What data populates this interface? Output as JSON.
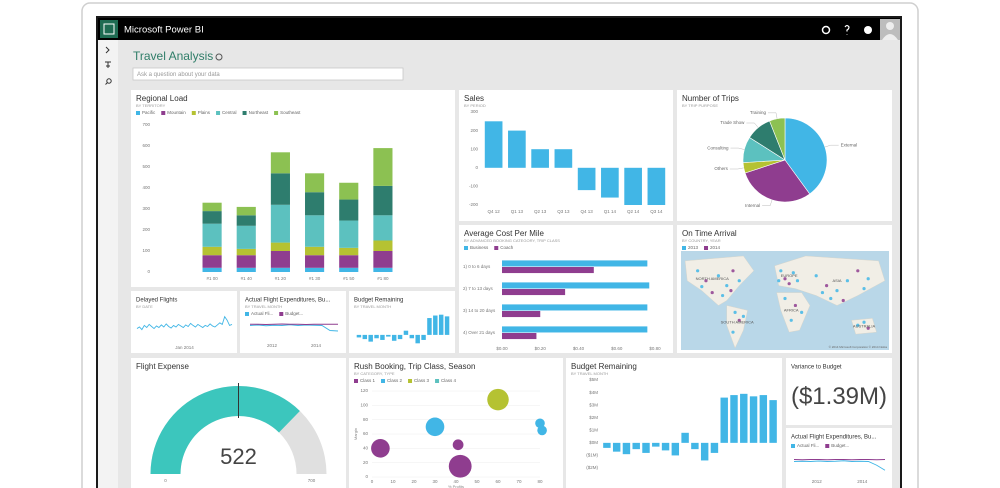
{
  "app": {
    "brand": "Microsoft Power BI"
  },
  "header": {
    "title": "Travel Analysis",
    "qa_placeholder": "Ask a question about your data"
  },
  "chart_data": [
    {
      "type": "stacked_bar",
      "title": "Regional Load",
      "subtitle": "BY TERRITORY",
      "categories": [
        "#1 00",
        "#1 40",
        "#1 20",
        "#1 30",
        "#1 50",
        "#1 80"
      ],
      "series": [
        {
          "name": "Pacific",
          "color": "#41b6e6",
          "values": [
            20,
            20,
            20,
            20,
            20,
            20
          ]
        },
        {
          "name": "Mountain",
          "color": "#8f3d8f",
          "values": [
            60,
            60,
            80,
            60,
            60,
            80
          ]
        },
        {
          "name": "Plains",
          "color": "#b5c232",
          "values": [
            40,
            30,
            40,
            40,
            35,
            50
          ]
        },
        {
          "name": "Central",
          "color": "#5cc1bf",
          "values": [
            110,
            110,
            180,
            150,
            130,
            120
          ]
        },
        {
          "name": "Northeast",
          "color": "#2e7d6e",
          "values": [
            60,
            50,
            150,
            110,
            100,
            140
          ]
        },
        {
          "name": "Southeast",
          "color": "#8cc152",
          "values": [
            40,
            40,
            100,
            90,
            80,
            180
          ]
        }
      ],
      "ylim": [
        0,
        700
      ],
      "yticks": [
        0,
        100,
        200,
        300,
        400,
        500,
        600,
        700
      ]
    },
    {
      "type": "bar",
      "title": "Sales",
      "subtitle": "BY PERIOD",
      "categories": [
        "Q4 12",
        "Q1 13",
        "Q2 13",
        "Q3 13",
        "Q4 13",
        "Q1 14",
        "Q2 14",
        "Q3 14"
      ],
      "values": [
        250,
        200,
        100,
        100,
        -120,
        -160,
        -200,
        -200
      ],
      "color": "#41b6e6",
      "ylim": [
        -200,
        300
      ],
      "yticks": [
        -200,
        -100,
        0,
        100,
        200,
        300
      ]
    },
    {
      "type": "pie",
      "title": "Number of Trips",
      "subtitle": "BY TRIP PURPOSE",
      "categories": [
        "External",
        "Internal",
        "Others",
        "Consulting",
        "Trade Show",
        "Training"
      ],
      "values": [
        40,
        30,
        4,
        10,
        10,
        6
      ],
      "colors": [
        "#41b6e6",
        "#8f3d8f",
        "#b5c232",
        "#5cc1bf",
        "#2e7d6e",
        "#8cc152"
      ]
    },
    {
      "type": "hbar",
      "title": "Average Cost Per Mile",
      "subtitle": "BY ADVANCED BOOKING CATEGORY, TRIP CLASS",
      "categories": [
        "1) 0 to 6 days",
        "2) 7 to 13 days",
        "3) 14 to 20 days",
        "4) Over 21 days"
      ],
      "series": [
        {
          "name": "Business",
          "color": "#41b6e6",
          "values": [
            0.76,
            0.77,
            0.76,
            0.76
          ]
        },
        {
          "name": "Coach",
          "color": "#8f3d8f",
          "values": [
            0.48,
            0.33,
            0.2,
            0.18
          ]
        }
      ],
      "xlim": [
        0,
        0.8
      ],
      "xticks": [
        {
          "value": 0,
          "label": "$0.00"
        },
        {
          "value": 0.2,
          "label": "$0.20"
        },
        {
          "value": 0.4,
          "label": "$0.40"
        },
        {
          "value": 0.6,
          "label": "$0.60"
        },
        {
          "value": 0.8,
          "label": "$0.80"
        }
      ]
    },
    {
      "type": "map",
      "title": "On Time Arrival",
      "subtitle": "BY COUNTRY, YEAR",
      "series": [
        {
          "name": "2013",
          "color": "#41b6e6"
        },
        {
          "name": "2014",
          "color": "#8f3d8f"
        }
      ],
      "labels": [
        "NORTH AMERICA",
        "SOUTH AMERICA",
        "EUROPE",
        "AFRICA",
        "ASIA",
        "AUSTRALIA"
      ],
      "attribution": "© 2014 Microsoft Corporation  © 2014 Nokia"
    },
    {
      "type": "line",
      "title": "Delayed Flights",
      "subtitle": "BY DATE",
      "values": [
        22,
        25,
        20,
        28,
        24,
        30,
        26,
        22,
        27,
        24,
        29,
        25,
        31,
        26,
        23,
        28,
        25,
        30,
        27,
        24,
        29,
        26,
        32,
        28,
        25,
        30,
        27,
        24,
        28,
        26,
        31,
        27,
        25,
        29,
        33,
        30,
        45,
        38,
        28,
        30
      ],
      "color": "#41b6e6",
      "ylim": [
        0,
        50
      ],
      "x_tick_labels": [
        "Jan 2014"
      ]
    },
    {
      "type": "line",
      "title": "Actual Flight Expenditures, Bu...",
      "subtitle": "BY TRAVEL MONTH",
      "series": [
        {
          "name": "Actual Fli...",
          "color": "#41b6e6",
          "values": [
            50,
            52,
            49,
            51,
            50,
            53,
            50,
            52,
            51,
            50,
            30,
            28
          ]
        },
        {
          "name": "Budget...",
          "color": "#8f3d8f",
          "values": [
            55,
            55,
            54,
            55,
            56,
            55,
            55,
            54,
            55,
            55,
            55,
            55
          ]
        }
      ],
      "ylim": [
        0,
        80
      ],
      "x_tick_labels": [
        "2012",
        "2014"
      ]
    },
    {
      "type": "bar",
      "title": "Budget Remaining",
      "subtitle": "BY TRAVEL MONTH",
      "values": [
        -0.3,
        -0.5,
        -0.8,
        -0.4,
        -0.6,
        -0.2,
        -0.7,
        -0.5,
        0.5,
        -0.4,
        -1.0,
        -0.6,
        2.0,
        2.3,
        2.4,
        2.2
      ],
      "color": "#41b6e6",
      "ylim": [
        -1.2,
        2.6
      ]
    },
    {
      "type": "gauge",
      "title": "Flight Expense",
      "value": 522,
      "min": 0,
      "max": 700,
      "target": 350,
      "color": "#3cc6bd"
    },
    {
      "type": "bubble",
      "title": "Rush Booking, Trip Class, Season",
      "subtitle": "BY CATEGORY, TYPE",
      "x_label": "% Profits",
      "y_label": "Margin",
      "series": [
        {
          "name": "Class 1",
          "color": "#8f3d8f",
          "x": [
            4,
            42,
            41
          ],
          "y": [
            40,
            15,
            45
          ],
          "size": [
            30,
            45,
            10
          ]
        },
        {
          "name": "Class 2",
          "color": "#41b6e6",
          "x": [
            30,
            80,
            81
          ],
          "y": [
            70,
            75,
            65
          ],
          "size": [
            30,
            8,
            8
          ]
        },
        {
          "name": "Class 3",
          "color": "#b5c232",
          "x": [
            60
          ],
          "y": [
            108
          ],
          "size": [
            40
          ]
        },
        {
          "name": "Class 4",
          "color": "#5cc1bf",
          "x": [],
          "y": [],
          "size": []
        }
      ],
      "xlim": [
        0,
        80
      ],
      "xticks": [
        0,
        10,
        20,
        30,
        40,
        50,
        60,
        70,
        80
      ],
      "ylim": [
        0,
        120
      ],
      "yticks": [
        0,
        20,
        40,
        60,
        80,
        100,
        120
      ]
    },
    {
      "type": "bar",
      "title": "Budget Remaining",
      "subtitle": "BY TRAVEL MONTH",
      "values": [
        -400000,
        -700000,
        -900000,
        -500000,
        -800000,
        -300000,
        -600000,
        -1000000,
        800000,
        -500000,
        -1400000,
        -800000,
        3600000,
        3800000,
        3900000,
        3700000,
        3800000,
        3400000
      ],
      "color": "#41b6e6",
      "ylim": [
        -2000000,
        5000000
      ],
      "yticks": [
        {
          "value": -2000000,
          "label": "($2M)"
        },
        {
          "value": -1000000,
          "label": "($1M)"
        },
        {
          "value": 0,
          "label": "$0M"
        },
        {
          "value": 1000000,
          "label": "$1M"
        },
        {
          "value": 2000000,
          "label": "$2M"
        },
        {
          "value": 3000000,
          "label": "$3M"
        },
        {
          "value": 4000000,
          "label": "$4M"
        },
        {
          "value": 5000000,
          "label": "$5M"
        }
      ]
    },
    {
      "type": "card",
      "title": "Variance to Budget",
      "values": [
        -1390000
      ],
      "value_labels": [
        "($1.39M)"
      ]
    },
    {
      "type": "line",
      "title": "Actual Flight Expenditures, Bu...",
      "series": [
        {
          "name": "Actual Fli...",
          "color": "#41b6e6",
          "values": [
            50,
            51,
            50,
            52,
            50,
            51,
            53,
            50,
            51,
            50,
            35,
            15
          ]
        },
        {
          "name": "Budget...",
          "color": "#8f3d8f",
          "values": [
            58,
            57,
            58,
            58,
            57,
            58,
            58,
            57,
            58,
            58,
            57,
            58
          ]
        }
      ],
      "ylim": [
        0,
        80
      ],
      "x_tick_labels": [
        "2012",
        "2014"
      ]
    }
  ]
}
